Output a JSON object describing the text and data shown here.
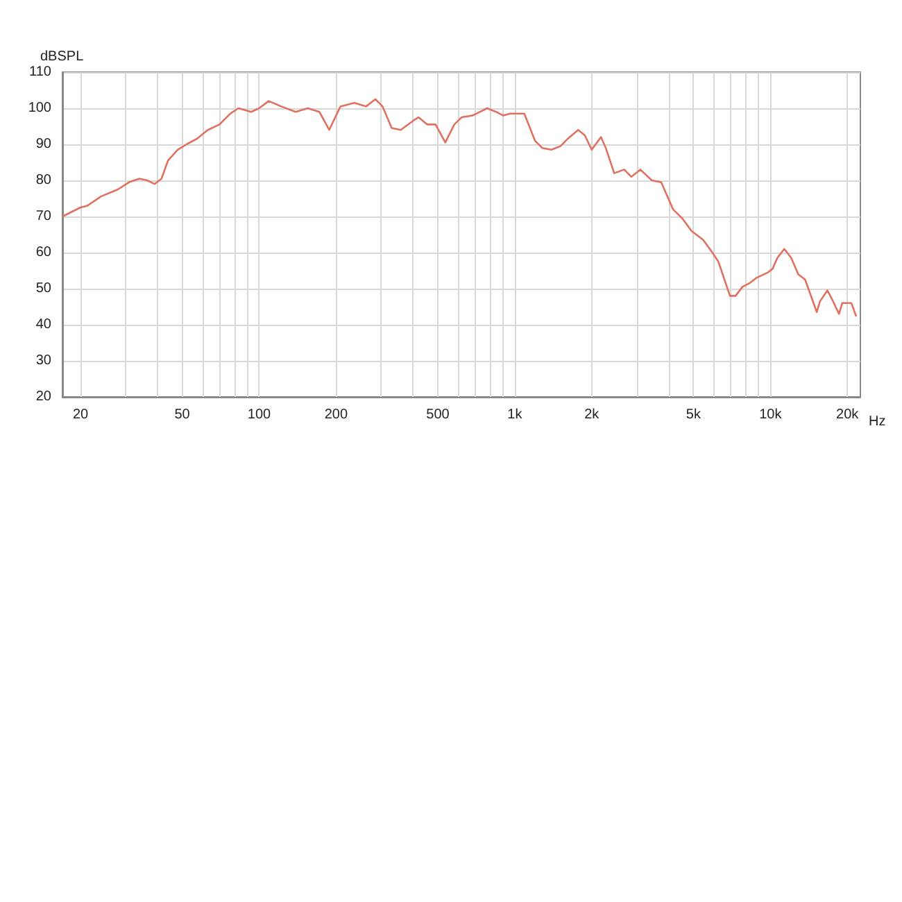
{
  "chart_data": {
    "type": "line",
    "xlabel": "Hz",
    "ylabel": "dBSPL",
    "log": "x",
    "grid": true,
    "marker": "none",
    "line_style": "solid",
    "xlim": [
      17,
      22500
    ],
    "ylim": [
      20,
      110
    ],
    "xticks": [
      {
        "value": 20,
        "label": "20"
      },
      {
        "value": 30,
        "label": null
      },
      {
        "value": 40,
        "label": null
      },
      {
        "value": 50,
        "label": "50"
      },
      {
        "value": 60,
        "label": null
      },
      {
        "value": 70,
        "label": null
      },
      {
        "value": 80,
        "label": null
      },
      {
        "value": 90,
        "label": null
      },
      {
        "value": 100,
        "label": "100"
      },
      {
        "value": 200,
        "label": "200"
      },
      {
        "value": 300,
        "label": null
      },
      {
        "value": 400,
        "label": null
      },
      {
        "value": 500,
        "label": "500"
      },
      {
        "value": 600,
        "label": null
      },
      {
        "value": 700,
        "label": null
      },
      {
        "value": 800,
        "label": null
      },
      {
        "value": 900,
        "label": null
      },
      {
        "value": 1000,
        "label": "1k"
      },
      {
        "value": 2000,
        "label": "2k"
      },
      {
        "value": 3000,
        "label": null
      },
      {
        "value": 4000,
        "label": null
      },
      {
        "value": 5000,
        "label": "5k"
      },
      {
        "value": 6000,
        "label": null
      },
      {
        "value": 7000,
        "label": null
      },
      {
        "value": 8000,
        "label": null
      },
      {
        "value": 9000,
        "label": null
      },
      {
        "value": 10000,
        "label": "10k"
      },
      {
        "value": 20000,
        "label": "20k"
      }
    ],
    "yticks": [
      20,
      30,
      40,
      50,
      60,
      70,
      80,
      90,
      100,
      110
    ],
    "series": [
      {
        "color": "#e07060",
        "x": [
          17,
          20,
          21.3,
          24,
          28,
          31,
          34,
          36.5,
          39,
          41.5,
          44,
          48,
          52,
          57,
          63,
          70,
          77,
          83,
          93,
          100,
          109,
          122,
          139,
          155,
          172,
          188,
          208,
          236,
          262,
          285,
          304,
          330,
          358,
          400,
          420,
          455,
          490,
          535,
          580,
          620,
          685,
          780,
          845,
          900,
          960,
          1090,
          1200,
          1280,
          1390,
          1510,
          1610,
          1770,
          1880,
          2000,
          2175,
          2270,
          2450,
          2680,
          2860,
          3100,
          3440,
          3740,
          4160,
          4520,
          4910,
          5460,
          5930,
          6260,
          6950,
          7310,
          7780,
          8290,
          8820,
          9790,
          10200,
          10650,
          11340,
          12070,
          12850,
          13680,
          15190,
          15640,
          16720,
          17590,
          18560,
          19110,
          20750,
          21620
        ],
        "values": [
          70,
          72.5,
          73,
          75.5,
          77.5,
          79.5,
          80.5,
          80,
          79,
          80.5,
          85.5,
          88.5,
          90,
          91.5,
          94,
          95.5,
          98.5,
          100,
          99,
          100,
          102,
          100.5,
          99,
          100,
          99,
          94,
          100.5,
          101.5,
          100.5,
          102.5,
          100.5,
          94.5,
          94,
          96.5,
          97.5,
          95.5,
          95.5,
          90.5,
          95.5,
          97.5,
          98,
          100,
          99,
          98,
          98.5,
          98.5,
          91,
          89,
          88.5,
          89.5,
          91.5,
          94,
          92.5,
          88.5,
          92,
          89,
          82,
          83,
          81,
          83,
          80,
          79.5,
          72,
          69.5,
          66,
          63.5,
          60,
          57.5,
          48,
          48,
          50.5,
          51.5,
          53,
          54.5,
          55.5,
          58.5,
          61,
          58.5,
          54,
          52.5,
          43.5,
          46.5,
          49.5,
          46.5,
          43,
          46,
          46,
          42.5
        ]
      }
    ]
  }
}
